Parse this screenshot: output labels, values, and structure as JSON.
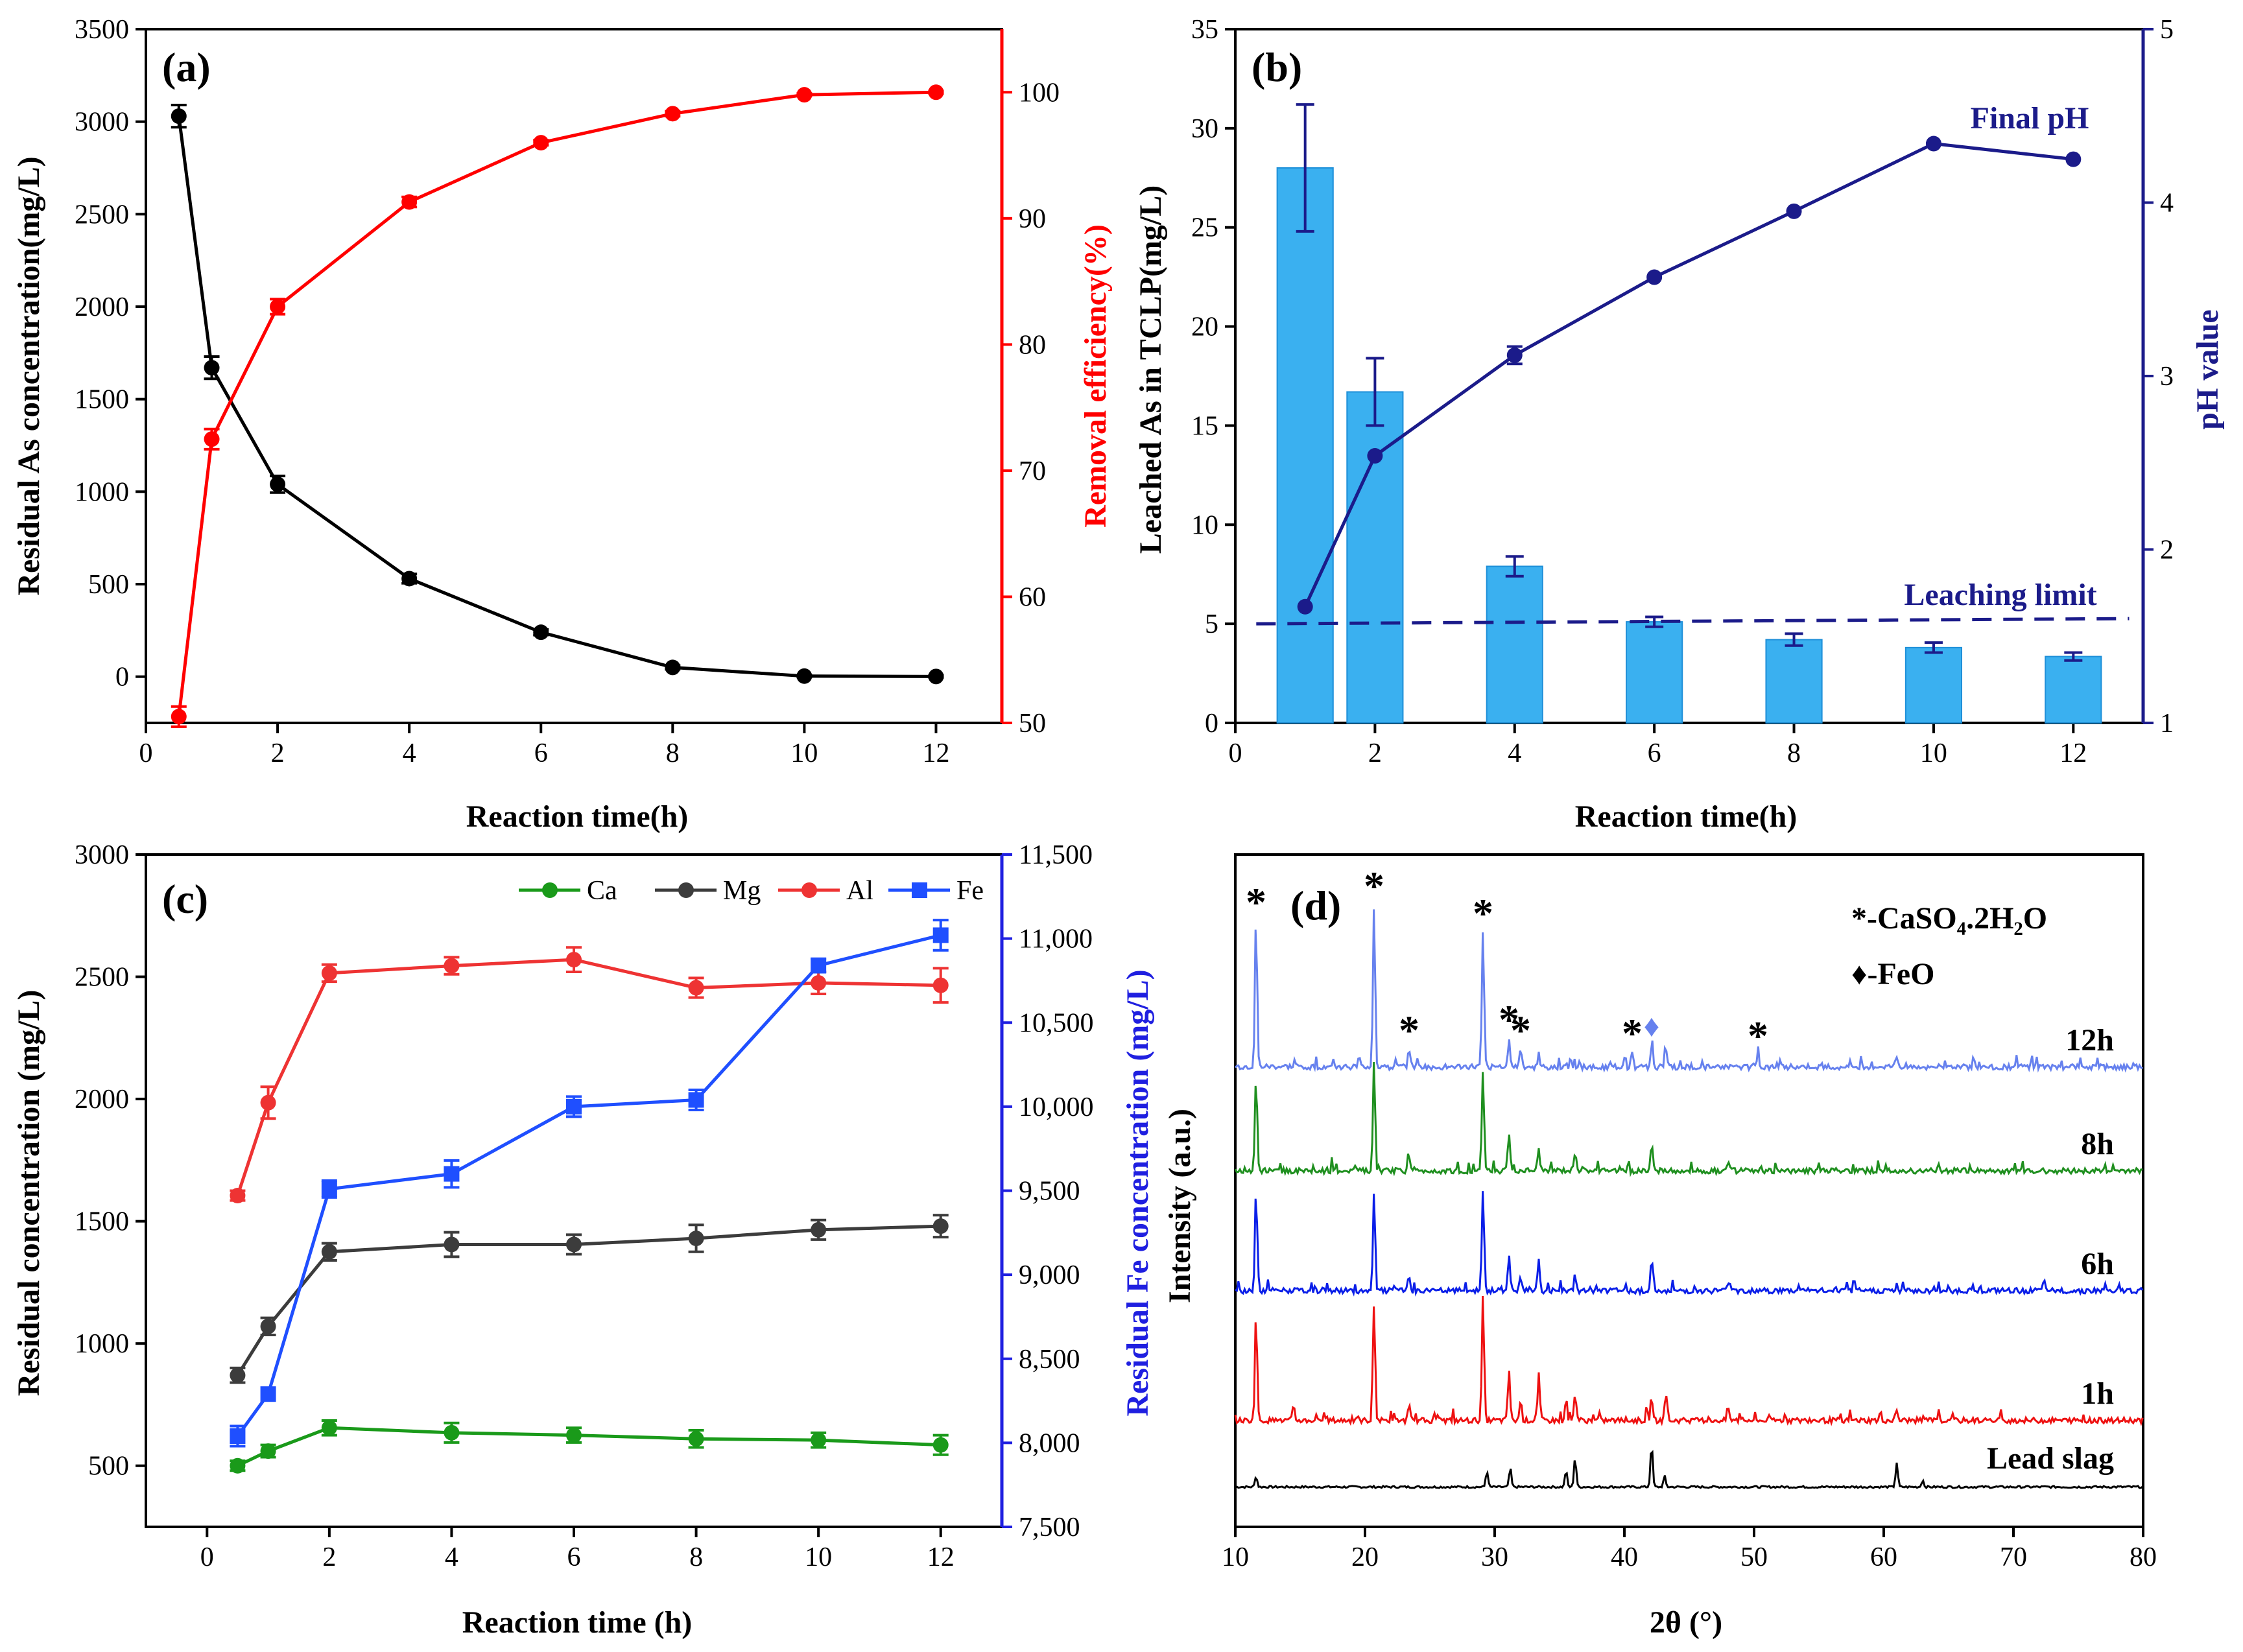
{
  "chart_data": [
    {
      "id": "a",
      "type": "line",
      "panel_label": "(a)",
      "xlabel": "Reaction time(h)",
      "ylabel_left": "Residual As concentration(mg/L)",
      "ylabel_right": "Removal efficiency(%)",
      "xlim": [
        0,
        13
      ],
      "xticks": [
        0,
        2,
        4,
        6,
        8,
        10,
        12
      ],
      "ylim_left": [
        -250,
        3500
      ],
      "yticks_left": [
        0,
        500,
        1000,
        1500,
        2000,
        2500,
        3000,
        3500
      ],
      "ylim_right": [
        50,
        105
      ],
      "yticks_right": [
        50,
        60,
        70,
        80,
        90,
        100
      ],
      "series": [
        {
          "name": "Residual As",
          "axis": "left",
          "color": "#000000",
          "marker": "circle",
          "x": [
            0.5,
            1,
            2,
            4,
            6,
            8,
            10,
            12
          ],
          "y": [
            3030,
            1670,
            1040,
            530,
            240,
            50,
            3,
            1
          ],
          "err": [
            60,
            60,
            45,
            25,
            15,
            10,
            5,
            5
          ]
        },
        {
          "name": "Removal efficiency",
          "axis": "right",
          "color": "#ff0000",
          "marker": "circle",
          "x": [
            0.5,
            1,
            2,
            4,
            6,
            8,
            10,
            12
          ],
          "y": [
            50.5,
            72.5,
            83,
            91.3,
            96,
            98.3,
            99.8,
            100
          ],
          "err": [
            0.8,
            0.8,
            0.6,
            0.4,
            0.2,
            0.2,
            0.1,
            0.1
          ]
        }
      ]
    },
    {
      "id": "b",
      "type": "bar",
      "panel_label": "(b)",
      "xlabel": "Reaction time(h)",
      "ylabel_left": "Leached As  in TCLP(mg/L)",
      "ylabel_right": "pH value",
      "xlim": [
        0,
        13
      ],
      "xticks": [
        0,
        2,
        4,
        6,
        8,
        10,
        12
      ],
      "ylim_left": [
        0,
        35
      ],
      "yticks_left": [
        0,
        5,
        10,
        15,
        20,
        25,
        30,
        35
      ],
      "ylim_right": [
        1,
        5
      ],
      "yticks_right": [
        1,
        2,
        3,
        4,
        5
      ],
      "bar_color": "#3ab0f0",
      "bars": {
        "x": [
          1,
          2,
          4,
          6,
          8,
          10,
          12
        ],
        "y": [
          28,
          16.7,
          7.9,
          5.1,
          4.2,
          3.8,
          3.35
        ],
        "err": [
          3.2,
          1.7,
          0.5,
          0.25,
          0.3,
          0.25,
          0.2
        ]
      },
      "line": {
        "name": "Final pH",
        "color": "#1b1b8a",
        "x": [
          1,
          2,
          4,
          6,
          8,
          10,
          12
        ],
        "y": [
          1.67,
          2.54,
          3.12,
          3.57,
          3.95,
          4.34,
          4.25
        ],
        "err": [
          0,
          0,
          0.05,
          0,
          0,
          0,
          0
        ]
      },
      "limit": {
        "label": "Leaching limit",
        "value": 5
      },
      "annotation": "Final pH"
    },
    {
      "id": "c",
      "type": "line",
      "panel_label": "(c)",
      "xlabel": "Reaction time (h)",
      "ylabel_left": "Residual concentration (mg/L)",
      "ylabel_right": "Residual Fe concentration (mg/L)",
      "xlim": [
        -1,
        13
      ],
      "xticks": [
        0,
        2,
        4,
        6,
        8,
        10,
        12
      ],
      "ylim_left": [
        250,
        3000
      ],
      "yticks_left": [
        500,
        1000,
        1500,
        2000,
        2500,
        3000
      ],
      "ylim_right": [
        7500,
        11500
      ],
      "yticks_right": [
        "7,500",
        "8,000",
        "8,500",
        "9,000",
        "9,500",
        "10,000",
        "10,500",
        "11,000",
        "11,500"
      ],
      "yticks_right_values": [
        7500,
        8000,
        8500,
        9000,
        9500,
        10000,
        10500,
        11000,
        11500
      ],
      "series": [
        {
          "name": "Ca",
          "axis": "left",
          "color": "#1a9a1a",
          "marker": "circle",
          "x": [
            0.5,
            1,
            2,
            4,
            6,
            8,
            10,
            12
          ],
          "y": [
            500,
            560,
            655,
            635,
            625,
            610,
            605,
            585
          ],
          "err": [
            20,
            25,
            30,
            40,
            30,
            35,
            30,
            40
          ]
        },
        {
          "name": "Mg",
          "axis": "left",
          "color": "#3c3c3c",
          "marker": "circle",
          "x": [
            0.5,
            1,
            2,
            4,
            6,
            8,
            10,
            12
          ],
          "y": [
            870,
            1070,
            1375,
            1405,
            1405,
            1430,
            1465,
            1480
          ],
          "err": [
            30,
            35,
            35,
            50,
            40,
            55,
            40,
            45
          ]
        },
        {
          "name": "Al",
          "axis": "left",
          "color": "#ee3333",
          "marker": "circle",
          "x": [
            0.5,
            1,
            2,
            4,
            6,
            8,
            10,
            12
          ],
          "y": [
            1605,
            1985,
            2515,
            2545,
            2570,
            2455,
            2475,
            2465
          ],
          "err": [
            20,
            65,
            35,
            35,
            50,
            40,
            45,
            70
          ]
        },
        {
          "name": "Fe",
          "axis": "right",
          "color": "#1f4fff",
          "marker": "square",
          "x": [
            0.5,
            1,
            2,
            4,
            6,
            8,
            10,
            12
          ],
          "y": [
            8040,
            8290,
            9510,
            9600,
            10000,
            10040,
            10840,
            11020
          ],
          "err": [
            60,
            0,
            50,
            80,
            60,
            60,
            40,
            90
          ]
        }
      ]
    },
    {
      "id": "d",
      "type": "line",
      "panel_label": "(d)",
      "xlabel": "2θ (°)",
      "ylabel": "Intensity (a.u.)",
      "xlim": [
        10,
        80
      ],
      "xticks": [
        10,
        20,
        30,
        40,
        50,
        60,
        70,
        80
      ],
      "legend_lines": [
        "*-CaSO₄.2H₂O",
        "♦-FeO"
      ],
      "series": [
        {
          "name": "Lead slag",
          "color": "#000000",
          "peaks": [
            [
              11.6,
              8
            ],
            [
              29.4,
              12
            ],
            [
              31.2,
              14
            ],
            [
              35.5,
              12
            ],
            [
              36.2,
              22
            ],
            [
              42.1,
              32
            ],
            [
              43.1,
              8
            ],
            [
              61.0,
              18
            ],
            [
              63.0,
              5
            ]
          ]
        },
        {
          "name": "1h",
          "color": "#ee1111",
          "peaks": [
            [
              11.6,
              80
            ],
            [
              14.5,
              10
            ],
            [
              20.7,
              88
            ],
            [
              23.4,
              10
            ],
            [
              29.1,
              92
            ],
            [
              31.1,
              38
            ],
            [
              32.0,
              15
            ],
            [
              33.4,
              32
            ],
            [
              35.5,
              16
            ],
            [
              36.2,
              18
            ],
            [
              42.1,
              18
            ],
            [
              43.2,
              20
            ],
            [
              48.0,
              10
            ],
            [
              61.0,
              8
            ]
          ]
        },
        {
          "name": "6h",
          "color": "#0a1ee8",
          "peaks": [
            [
              11.6,
              75
            ],
            [
              20.7,
              72
            ],
            [
              23.4,
              10
            ],
            [
              29.1,
              75
            ],
            [
              31.1,
              28
            ],
            [
              32.0,
              10
            ],
            [
              33.4,
              22
            ],
            [
              36.2,
              12
            ],
            [
              42.1,
              16
            ],
            [
              48.0,
              8
            ]
          ]
        },
        {
          "name": "8h",
          "color": "#1f8f1f",
          "peaks": [
            [
              11.6,
              70
            ],
            [
              20.7,
              78
            ],
            [
              23.4,
              10
            ],
            [
              29.1,
              72
            ],
            [
              31.1,
              28
            ],
            [
              33.4,
              16
            ],
            [
              36.2,
              12
            ],
            [
              42.1,
              18
            ],
            [
              48.0,
              8
            ]
          ]
        },
        {
          "name": "12h",
          "color": "#6681ee",
          "peaks": [
            [
              11.6,
              108
            ],
            [
              20.7,
              120
            ],
            [
              23.4,
              14
            ],
            [
              29.1,
              100
            ],
            [
              31.1,
              22
            ],
            [
              32.0,
              14
            ],
            [
              33.4,
              10
            ],
            [
              40.6,
              12
            ],
            [
              42.1,
              16
            ],
            [
              43.2,
              12
            ],
            [
              50.3,
              10
            ],
            [
              61.0,
              8
            ]
          ]
        }
      ],
      "markers_12h": [
        {
          "x": 11.6,
          "symbol": "*"
        },
        {
          "x": 20.7,
          "symbol": "*"
        },
        {
          "x": 23.4,
          "symbol": "*"
        },
        {
          "x": 29.1,
          "symbol": "*"
        },
        {
          "x": 31.1,
          "symbol": "*"
        },
        {
          "x": 32.0,
          "symbol": "*"
        },
        {
          "x": 40.6,
          "symbol": "*"
        },
        {
          "x": 42.1,
          "symbol": "♦"
        },
        {
          "x": 50.3,
          "symbol": "*"
        }
      ]
    }
  ]
}
